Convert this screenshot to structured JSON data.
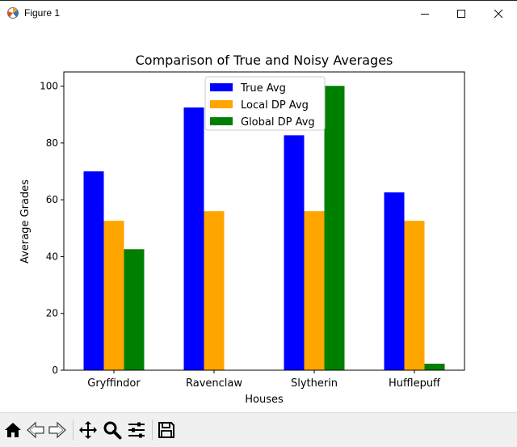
{
  "window": {
    "title": "Figure 1",
    "minimize_icon": "minimize-icon",
    "maximize_icon": "maximize-icon",
    "close_icon": "close-icon"
  },
  "toolbar": {
    "items": [
      "home-icon",
      "back-arrow-icon",
      "forward-arrow-icon",
      "pan-move-icon",
      "zoom-icon",
      "configure-subplots-icon",
      "save-icon"
    ]
  },
  "chart_data": {
    "type": "bar",
    "title": "Comparison of True and Noisy Averages",
    "xlabel": "Houses",
    "ylabel": "Average Grades",
    "categories": [
      "Gryffindor",
      "Ravenclaw",
      "Slytherin",
      "Hufflepuff"
    ],
    "series": [
      {
        "name": "True Avg",
        "color": "#0000ff",
        "values": [
          70.0,
          92.5,
          82.7,
          62.6
        ]
      },
      {
        "name": "Local DP Avg",
        "color": "#ffa500",
        "values": [
          52.6,
          56.0,
          56.0,
          52.6
        ]
      },
      {
        "name": "Global DP Avg",
        "color": "#008000",
        "values": [
          42.6,
          0,
          100.1,
          2.3
        ]
      }
    ],
    "ylim": [
      0,
      105
    ],
    "yticks": [
      0,
      20,
      40,
      60,
      80,
      100
    ],
    "grid": false,
    "legend": "top-center"
  }
}
